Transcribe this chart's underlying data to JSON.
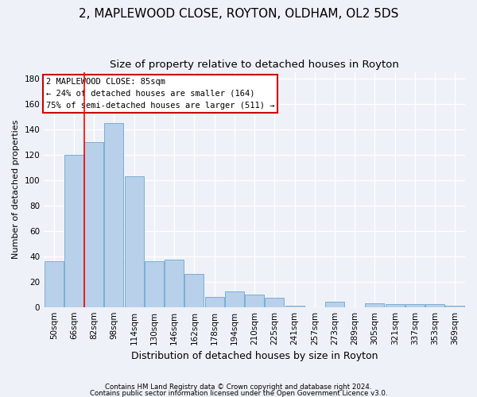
{
  "title": "2, MAPLEWOOD CLOSE, ROYTON, OLDHAM, OL2 5DS",
  "subtitle": "Size of property relative to detached houses in Royton",
  "xlabel": "Distribution of detached houses by size in Royton",
  "ylabel": "Number of detached properties",
  "categories": [
    "50sqm",
    "66sqm",
    "82sqm",
    "98sqm",
    "114sqm",
    "130sqm",
    "146sqm",
    "162sqm",
    "178sqm",
    "194sqm",
    "210sqm",
    "225sqm",
    "241sqm",
    "257sqm",
    "273sqm",
    "289sqm",
    "305sqm",
    "321sqm",
    "337sqm",
    "353sqm",
    "369sqm"
  ],
  "values": [
    36,
    120,
    130,
    145,
    103,
    36,
    37,
    26,
    8,
    12,
    10,
    7,
    1,
    0,
    4,
    0,
    3,
    2,
    2,
    2,
    1
  ],
  "bar_color": "#b8d0ea",
  "bar_edge_color": "#7aafd4",
  "red_line_x": 1.5,
  "annotation_text": "2 MAPLEWOOD CLOSE: 85sqm\n← 24% of detached houses are smaller (164)\n75% of semi-detached houses are larger (511) →",
  "annotation_box_color": "#ffffff",
  "annotation_box_edge": "#cc0000",
  "footer1": "Contains HM Land Registry data © Crown copyright and database right 2024.",
  "footer2": "Contains public sector information licensed under the Open Government Licence v3.0.",
  "ylim": [
    0,
    185
  ],
  "background_color": "#eef2f8",
  "grid_color": "#ffffff",
  "title_fontsize": 11,
  "subtitle_fontsize": 9.5,
  "tick_fontsize": 7.5,
  "ylabel_fontsize": 8,
  "xlabel_fontsize": 9
}
